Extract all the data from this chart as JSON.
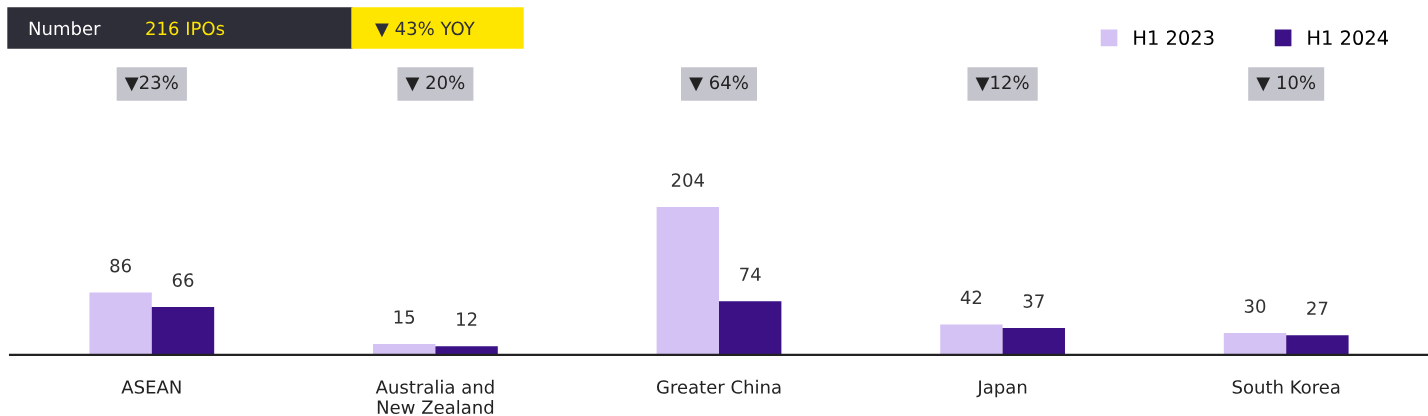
{
  "chart_data": {
    "type": "bar",
    "categories": [
      "ASEAN",
      "Australia and\nNew Zealand",
      "Greater China",
      "Japan",
      "South Korea"
    ],
    "series": [
      {
        "name": "H1 2023",
        "color": "#d5c2f5",
        "values": [
          86,
          15,
          204,
          42,
          30
        ]
      },
      {
        "name": "H1 2024",
        "color": "#3c1186",
        "values": [
          66,
          12,
          74,
          37,
          27
        ]
      }
    ],
    "data_labels": true,
    "legend": "top right",
    "grid": false,
    "annotations": [
      "Number",
      "216 IPOs",
      "▼ 43% YOY",
      "▼23%",
      "▼ 20%",
      "▼ 64%",
      "▼12%",
      "▼ 10%"
    ]
  }
}
